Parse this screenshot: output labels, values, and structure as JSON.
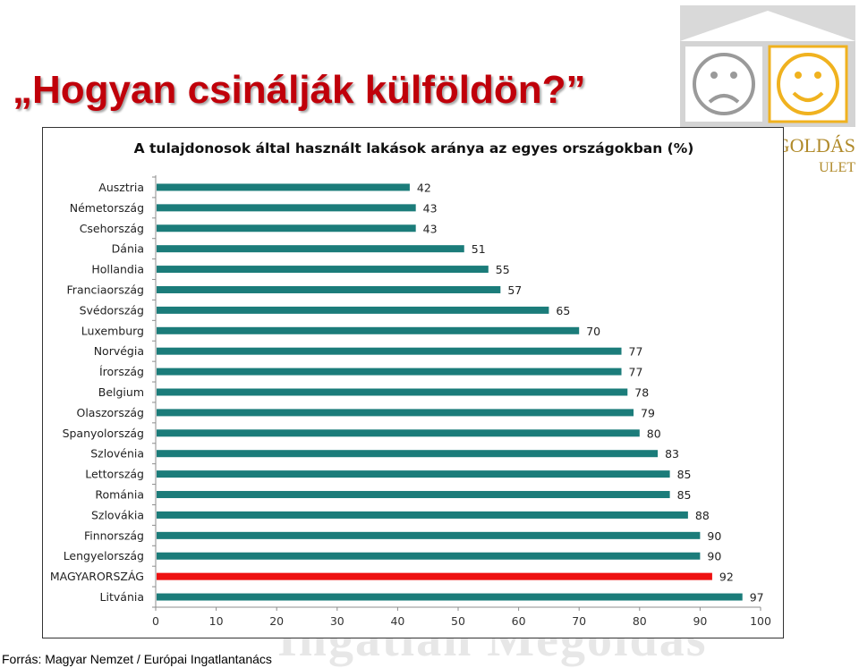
{
  "slide": {
    "title": "„Hogyan csinálják külföldön?”",
    "source": "Forrás: Magyar Nemzet / Európai Ingatlantanács"
  },
  "logo": {
    "text_lines": [
      "GOLDÁS",
      "ULET"
    ],
    "watermark_text": "Ingatlan Megoldás"
  },
  "colors": {
    "bar": "#1b7c7a",
    "highlight": "#ee1111",
    "title": "#c0000a"
  },
  "chart_data": {
    "type": "bar",
    "orientation": "horizontal",
    "title": "A tulajdonosok által használt lakások aránya az egyes országokban (%)",
    "xlim": [
      0,
      100
    ],
    "xticks": [
      0,
      10,
      20,
      30,
      40,
      50,
      60,
      70,
      80,
      90,
      100
    ],
    "grid": false,
    "highlight_category": "MAGYARORSZÁG",
    "categories": [
      "Ausztria",
      "Németország",
      "Csehország",
      "Dánia",
      "Hollandia",
      "Franciaország",
      "Svédország",
      "Luxemburg",
      "Norvégia",
      "Írország",
      "Belgium",
      "Olaszország",
      "Spanyolország",
      "Szlovénia",
      "Lettország",
      "Románia",
      "Szlovákia",
      "Finnország",
      "Lengyelország",
      "MAGYARORSZÁG",
      "Litvánia"
    ],
    "values": [
      42,
      43,
      43,
      51,
      55,
      57,
      65,
      70,
      77,
      77,
      78,
      79,
      80,
      83,
      85,
      85,
      88,
      90,
      90,
      92,
      97
    ]
  }
}
